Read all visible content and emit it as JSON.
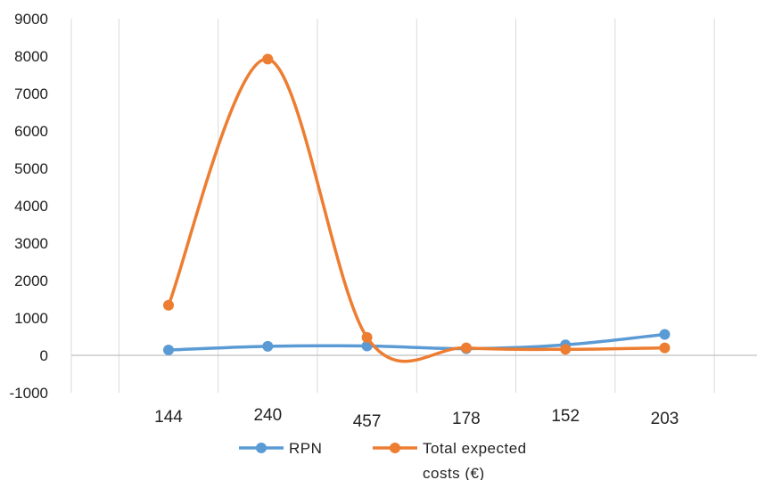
{
  "chart_data": {
    "type": "line",
    "categories": [
      "144",
      "240",
      "457",
      "178",
      "152",
      "203"
    ],
    "y_ticks": [
      "-1000",
      "0",
      "1000",
      "2000",
      "3000",
      "4000",
      "5000",
      "6000",
      "7000",
      "8000",
      "9000"
    ],
    "ylim": [
      -1000,
      9000
    ],
    "smooth": true,
    "grid": true,
    "legend_position": "bottom",
    "series": [
      {
        "name": "RPN",
        "color": "#5b9bd5",
        "values": [
          144,
          240,
          250,
          178,
          280,
          560
        ]
      },
      {
        "name": "Total expected costs (€)",
        "name_lines": [
          "Total expected",
          "costs (€)"
        ],
        "color": "#ed7d31",
        "values": [
          1340,
          7920,
          480,
          200,
          160,
          200
        ]
      }
    ]
  }
}
